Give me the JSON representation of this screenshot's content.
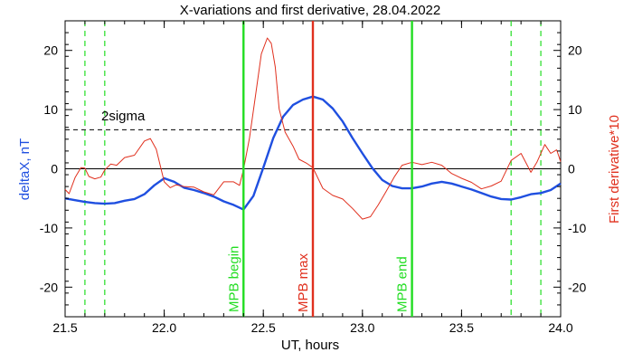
{
  "chart_data": {
    "type": "line",
    "title": "X-variations and first derivative, 28.04.2022",
    "xlabel": "UT, hours",
    "ylabel_left": "deltaX, nT",
    "ylabel_right": "First derivative*10",
    "xlim": [
      21.5,
      24.0
    ],
    "ylim": [
      -25,
      25
    ],
    "xticks": [
      21.5,
      22.0,
      22.5,
      23.0,
      23.5,
      24.0
    ],
    "yticks": [
      -20,
      -10,
      0,
      10,
      20
    ],
    "xtick_labels": [
      "21.5",
      "22.0",
      "22.5",
      "23.0",
      "23.5",
      "24.0"
    ],
    "ytick_labels": [
      "-20",
      "-10",
      "0",
      "10",
      "20"
    ],
    "colors": {
      "deltaX": "#1f4fe0",
      "derivative": "#e0301e",
      "mpb_edge": "#22dd22",
      "mpb_max": "#e0301e",
      "axes": "#000000"
    },
    "sigma_level": 6.6,
    "sigma_label": "2sigma",
    "zero_level": 0,
    "vlines_dashed": [
      21.6,
      21.7,
      23.75,
      23.9
    ],
    "mpb_lines": [
      {
        "x": 22.4,
        "label": "MPB begin",
        "color": "#22dd22"
      },
      {
        "x": 22.75,
        "label": "MPB max",
        "color": "#e0301e"
      },
      {
        "x": 23.25,
        "label": "MPB end",
        "color": "#22dd22"
      }
    ],
    "series": [
      {
        "name": "deltaX, nT",
        "color": "#1f4fe0",
        "x": [
          21.5,
          21.55,
          21.6,
          21.65,
          21.7,
          21.75,
          21.8,
          21.85,
          21.9,
          21.95,
          22.0,
          22.05,
          22.1,
          22.15,
          22.2,
          22.25,
          22.3,
          22.35,
          22.4,
          22.45,
          22.5,
          22.55,
          22.6,
          22.65,
          22.7,
          22.75,
          22.8,
          22.85,
          22.9,
          22.95,
          23.0,
          23.05,
          23.1,
          23.15,
          23.2,
          23.25,
          23.3,
          23.35,
          23.4,
          23.45,
          23.5,
          23.55,
          23.6,
          23.65,
          23.7,
          23.75,
          23.8,
          23.85,
          23.9,
          23.95,
          24.0
        ],
        "y": [
          -5,
          -5.3,
          -5.6,
          -5.8,
          -5.9,
          -5.8,
          -5.4,
          -5.1,
          -4.3,
          -2.8,
          -1.6,
          -2.2,
          -3.2,
          -3.6,
          -4.1,
          -4.7,
          -5.5,
          -6.1,
          -6.9,
          -4.6,
          0.2,
          5.2,
          8.8,
          10.8,
          11.7,
          12.2,
          11.7,
          10.2,
          8,
          5.2,
          2.6,
          0.1,
          -1.9,
          -2.9,
          -3.3,
          -3.3,
          -3,
          -2.5,
          -2.2,
          -2.5,
          -3,
          -3.5,
          -4.1,
          -4.7,
          -5.1,
          -5.2,
          -4.8,
          -4.3,
          -4.1,
          -3.6,
          -2.5
        ]
      },
      {
        "name": "First derivative*10",
        "color": "#e0301e",
        "x": [
          21.5,
          21.52,
          21.55,
          21.58,
          21.6,
          21.62,
          21.65,
          21.68,
          21.7,
          21.73,
          21.76,
          21.8,
          21.85,
          21.9,
          21.93,
          21.96,
          22.0,
          22.03,
          22.06,
          22.1,
          22.15,
          22.2,
          22.25,
          22.3,
          22.35,
          22.38,
          22.4,
          22.43,
          22.46,
          22.49,
          22.52,
          22.54,
          22.56,
          22.58,
          22.61,
          22.65,
          22.68,
          22.72,
          22.75,
          22.8,
          22.85,
          22.9,
          22.95,
          23.0,
          23.04,
          23.08,
          23.12,
          23.16,
          23.2,
          23.25,
          23.3,
          23.35,
          23.4,
          23.45,
          23.5,
          23.55,
          23.6,
          23.65,
          23.7,
          23.75,
          23.8,
          23.85,
          23.88,
          23.92,
          23.95,
          23.98,
          24.0
        ],
        "y": [
          -3.5,
          -4.2,
          -1.5,
          0.2,
          0.1,
          -1.3,
          -1.7,
          -1.4,
          -0.2,
          0.8,
          0.6,
          1.9,
          2.3,
          4.7,
          5.1,
          3.3,
          -2.2,
          -3.2,
          -2.7,
          -3,
          -3.1,
          -3.9,
          -4.4,
          -2.2,
          -2.2,
          -2.8,
          -0.1,
          5.2,
          12.2,
          19.4,
          22.1,
          21.2,
          17.2,
          10.1,
          6.2,
          3.8,
          1.6,
          0.9,
          0.2,
          -3.3,
          -4.5,
          -5.1,
          -6.7,
          -8.5,
          -8.1,
          -6.1,
          -3.8,
          -1.4,
          0.6,
          1.1,
          0.7,
          1.1,
          0.6,
          -0.8,
          -1.6,
          -2.3,
          -3.4,
          -2.9,
          -2.1,
          1.4,
          2.6,
          -0.6,
          1.1,
          4.1,
          2.6,
          3.2,
          1.2
        ]
      }
    ]
  }
}
